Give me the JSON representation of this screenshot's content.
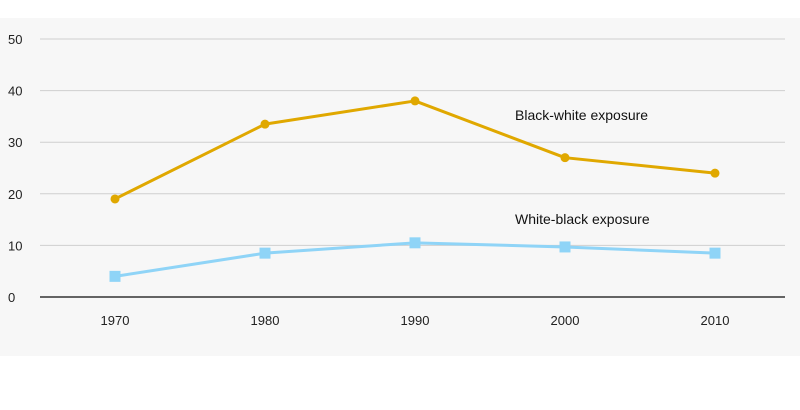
{
  "chart_data": {
    "type": "line",
    "title": "",
    "xlabel": "",
    "ylabel": "",
    "categories": [
      "1970",
      "1980",
      "1990",
      "2000",
      "2010"
    ],
    "ylim": [
      0,
      50
    ],
    "yticks": [
      "0",
      "10",
      "20",
      "30",
      "40",
      "50"
    ],
    "grid": true,
    "legend": "inline labels",
    "series": [
      {
        "name": "Black-white exposure",
        "values": [
          19,
          33.5,
          38,
          27,
          24
        ],
        "color": "#e0a800",
        "marker": "circle"
      },
      {
        "name": "White-black exposure",
        "values": [
          4,
          8.5,
          10.5,
          9.7,
          8.5
        ],
        "color": "#8fd4f7",
        "marker": "square"
      }
    ]
  }
}
